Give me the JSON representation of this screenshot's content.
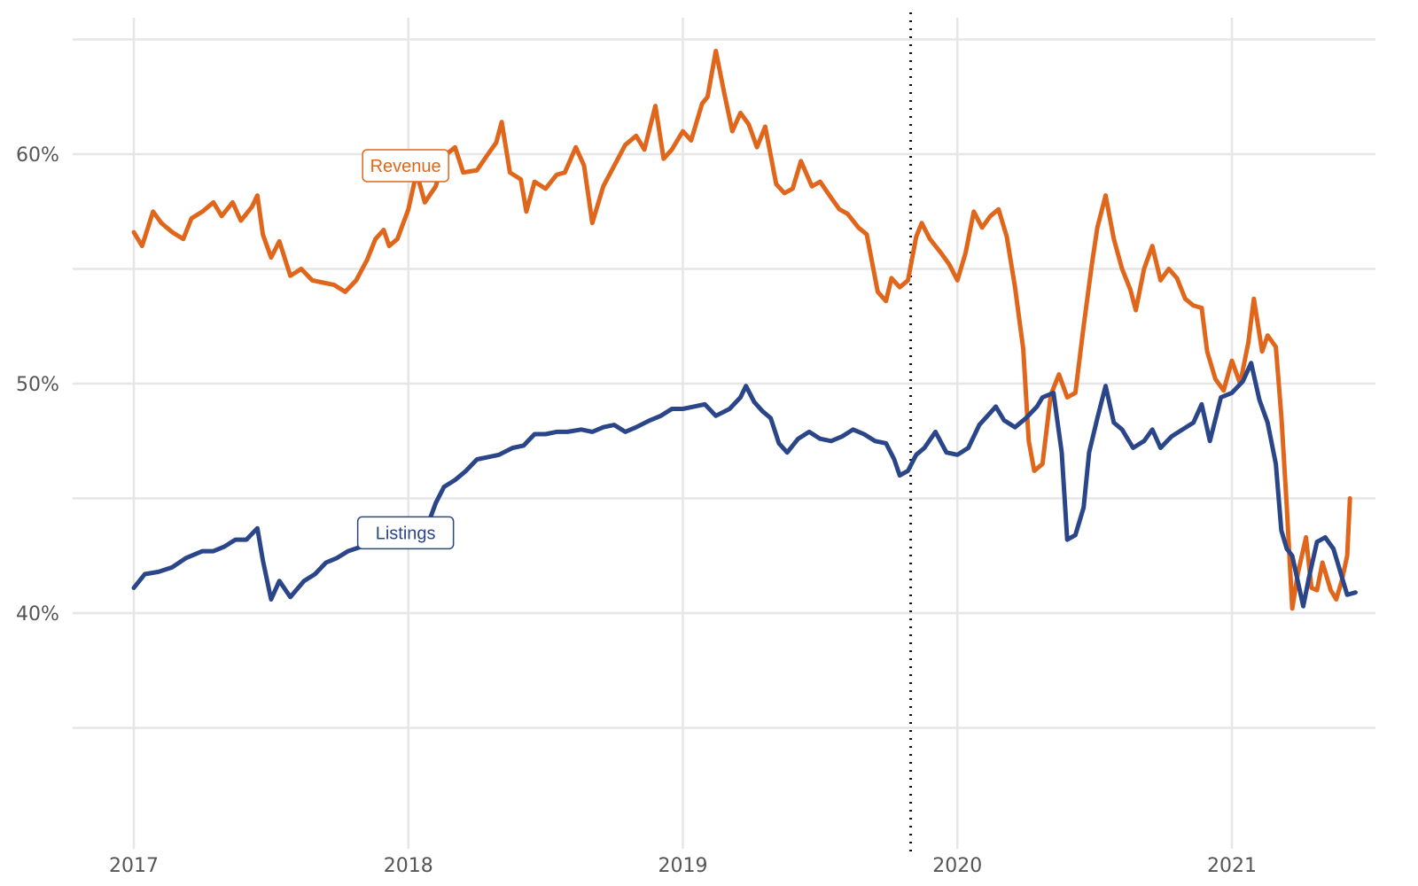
{
  "chart_data": {
    "type": "line",
    "title": "",
    "xlabel": "",
    "ylabel": "",
    "xlim": [
      2017.0,
      2021.63
    ],
    "ylim": [
      30,
      65
    ],
    "x_ticks": [
      2017,
      2018,
      2019,
      2020,
      2021
    ],
    "x_tick_labels": [
      "2017",
      "2018",
      "2019",
      "2020",
      "2021"
    ],
    "y_ticks": [
      40,
      50,
      60
    ],
    "y_tick_labels": [
      "40%",
      "50%",
      "60%"
    ],
    "y_gridlines": [
      35,
      40,
      45,
      50,
      55,
      60,
      65
    ],
    "grid": true,
    "legend": "inline-labels",
    "vertical_marker": {
      "x": 2019.83,
      "style": "dotted"
    },
    "series": [
      {
        "name": "Revenue",
        "color": "#e0661b",
        "label_at": {
          "x": 2017.99,
          "y": 59.5
        },
        "points": [
          [
            2017.0,
            56.6
          ],
          [
            2017.03,
            56.0
          ],
          [
            2017.07,
            57.5
          ],
          [
            2017.1,
            57.0
          ],
          [
            2017.14,
            56.6
          ],
          [
            2017.18,
            56.3
          ],
          [
            2017.21,
            57.2
          ],
          [
            2017.25,
            57.5
          ],
          [
            2017.29,
            57.9
          ],
          [
            2017.32,
            57.3
          ],
          [
            2017.36,
            57.9
          ],
          [
            2017.39,
            57.1
          ],
          [
            2017.43,
            57.7
          ],
          [
            2017.45,
            58.2
          ],
          [
            2017.47,
            56.5
          ],
          [
            2017.5,
            55.5
          ],
          [
            2017.53,
            56.2
          ],
          [
            2017.57,
            54.7
          ],
          [
            2017.61,
            55.0
          ],
          [
            2017.65,
            54.5
          ],
          [
            2017.69,
            54.4
          ],
          [
            2017.73,
            54.3
          ],
          [
            2017.77,
            54.0
          ],
          [
            2017.81,
            54.5
          ],
          [
            2017.85,
            55.4
          ],
          [
            2017.88,
            56.3
          ],
          [
            2017.91,
            56.7
          ],
          [
            2017.93,
            56.0
          ],
          [
            2017.96,
            56.3
          ],
          [
            2018.0,
            57.6
          ],
          [
            2018.03,
            59.2
          ],
          [
            2018.06,
            57.9
          ],
          [
            2018.1,
            58.6
          ],
          [
            2018.13,
            59.9
          ],
          [
            2018.17,
            60.3
          ],
          [
            2018.2,
            59.2
          ],
          [
            2018.25,
            59.3
          ],
          [
            2018.29,
            60.0
          ],
          [
            2018.32,
            60.5
          ],
          [
            2018.34,
            61.4
          ],
          [
            2018.37,
            59.2
          ],
          [
            2018.41,
            58.9
          ],
          [
            2018.43,
            57.5
          ],
          [
            2018.46,
            58.8
          ],
          [
            2018.5,
            58.5
          ],
          [
            2018.54,
            59.1
          ],
          [
            2018.57,
            59.2
          ],
          [
            2018.61,
            60.3
          ],
          [
            2018.64,
            59.5
          ],
          [
            2018.67,
            57.0
          ],
          [
            2018.71,
            58.6
          ],
          [
            2018.75,
            59.5
          ],
          [
            2018.79,
            60.4
          ],
          [
            2018.83,
            60.8
          ],
          [
            2018.86,
            60.2
          ],
          [
            2018.9,
            62.1
          ],
          [
            2018.93,
            59.8
          ],
          [
            2018.96,
            60.2
          ],
          [
            2019.0,
            61.0
          ],
          [
            2019.03,
            60.6
          ],
          [
            2019.07,
            62.2
          ],
          [
            2019.09,
            62.5
          ],
          [
            2019.12,
            64.5
          ],
          [
            2019.15,
            62.7
          ],
          [
            2019.18,
            61.0
          ],
          [
            2019.21,
            61.8
          ],
          [
            2019.24,
            61.3
          ],
          [
            2019.27,
            60.3
          ],
          [
            2019.3,
            61.2
          ],
          [
            2019.34,
            58.7
          ],
          [
            2019.37,
            58.3
          ],
          [
            2019.4,
            58.5
          ],
          [
            2019.43,
            59.7
          ],
          [
            2019.47,
            58.6
          ],
          [
            2019.5,
            58.8
          ],
          [
            2019.54,
            58.1
          ],
          [
            2019.57,
            57.6
          ],
          [
            2019.6,
            57.4
          ],
          [
            2019.64,
            56.8
          ],
          [
            2019.67,
            56.5
          ],
          [
            2019.71,
            54.0
          ],
          [
            2019.74,
            53.6
          ],
          [
            2019.76,
            54.6
          ],
          [
            2019.79,
            54.2
          ],
          [
            2019.82,
            54.5
          ],
          [
            2019.85,
            56.4
          ],
          [
            2019.87,
            57.0
          ],
          [
            2019.9,
            56.3
          ],
          [
            2019.94,
            55.7
          ],
          [
            2019.97,
            55.2
          ],
          [
            2020.0,
            54.5
          ],
          [
            2020.03,
            55.7
          ],
          [
            2020.06,
            57.5
          ],
          [
            2020.09,
            56.8
          ],
          [
            2020.12,
            57.3
          ],
          [
            2020.15,
            57.6
          ],
          [
            2020.18,
            56.4
          ],
          [
            2020.21,
            54.2
          ],
          [
            2020.24,
            51.5
          ],
          [
            2020.26,
            47.5
          ],
          [
            2020.28,
            46.2
          ],
          [
            2020.31,
            46.5
          ],
          [
            2020.34,
            49.5
          ],
          [
            2020.37,
            50.4
          ],
          [
            2020.4,
            49.4
          ],
          [
            2020.43,
            49.6
          ],
          [
            2020.46,
            52.5
          ],
          [
            2020.49,
            55.2
          ],
          [
            2020.51,
            56.8
          ],
          [
            2020.54,
            58.2
          ],
          [
            2020.57,
            56.3
          ],
          [
            2020.6,
            55.0
          ],
          [
            2020.63,
            54.1
          ],
          [
            2020.65,
            53.2
          ],
          [
            2020.68,
            55.0
          ],
          [
            2020.71,
            56.0
          ],
          [
            2020.74,
            54.5
          ],
          [
            2020.77,
            55.0
          ],
          [
            2020.8,
            54.6
          ],
          [
            2020.83,
            53.7
          ],
          [
            2020.86,
            53.4
          ],
          [
            2020.89,
            53.3
          ],
          [
            2020.91,
            51.4
          ],
          [
            2020.94,
            50.2
          ],
          [
            2020.97,
            49.7
          ],
          [
            2021.0,
            51.0
          ],
          [
            2021.03,
            50.0
          ],
          [
            2021.06,
            51.8
          ],
          [
            2021.08,
            53.7
          ],
          [
            2021.11,
            51.4
          ],
          [
            2021.13,
            52.1
          ],
          [
            2021.16,
            51.6
          ],
          [
            2021.18,
            48.6
          ],
          [
            2021.2,
            44.6
          ],
          [
            2021.22,
            40.2
          ],
          [
            2021.24,
            41.7
          ],
          [
            2021.27,
            43.3
          ],
          [
            2021.29,
            41.1
          ],
          [
            2021.31,
            41.0
          ],
          [
            2021.33,
            42.2
          ],
          [
            2021.36,
            41.0
          ],
          [
            2021.38,
            40.6
          ],
          [
            2021.4,
            41.4
          ],
          [
            2021.42,
            42.5
          ],
          [
            2021.43,
            45.0
          ]
        ]
      },
      {
        "name": "Listings",
        "color": "#2b4589",
        "label_at": {
          "x": 2017.99,
          "y": 43.5
        },
        "points": [
          [
            2017.0,
            41.1
          ],
          [
            2017.04,
            41.7
          ],
          [
            2017.09,
            41.8
          ],
          [
            2017.14,
            42.0
          ],
          [
            2017.19,
            42.4
          ],
          [
            2017.25,
            42.7
          ],
          [
            2017.29,
            42.7
          ],
          [
            2017.33,
            42.9
          ],
          [
            2017.37,
            43.2
          ],
          [
            2017.41,
            43.2
          ],
          [
            2017.45,
            43.7
          ],
          [
            2017.47,
            42.3
          ],
          [
            2017.5,
            40.6
          ],
          [
            2017.53,
            41.4
          ],
          [
            2017.57,
            40.7
          ],
          [
            2017.62,
            41.4
          ],
          [
            2017.66,
            41.7
          ],
          [
            2017.7,
            42.2
          ],
          [
            2017.74,
            42.4
          ],
          [
            2017.78,
            42.7
          ],
          [
            2017.83,
            42.9
          ],
          [
            2017.87,
            43.1
          ],
          [
            2017.92,
            43.4
          ],
          [
            2017.96,
            43.4
          ],
          [
            2018.0,
            43.6
          ],
          [
            2018.06,
            43.5
          ],
          [
            2018.1,
            44.8
          ],
          [
            2018.13,
            45.5
          ],
          [
            2018.17,
            45.8
          ],
          [
            2018.21,
            46.2
          ],
          [
            2018.25,
            46.7
          ],
          [
            2018.29,
            46.8
          ],
          [
            2018.33,
            46.9
          ],
          [
            2018.38,
            47.2
          ],
          [
            2018.42,
            47.3
          ],
          [
            2018.46,
            47.8
          ],
          [
            2018.5,
            47.8
          ],
          [
            2018.54,
            47.9
          ],
          [
            2018.58,
            47.9
          ],
          [
            2018.63,
            48.0
          ],
          [
            2018.67,
            47.9
          ],
          [
            2018.71,
            48.1
          ],
          [
            2018.75,
            48.2
          ],
          [
            2018.79,
            47.9
          ],
          [
            2018.83,
            48.1
          ],
          [
            2018.88,
            48.4
          ],
          [
            2018.92,
            48.6
          ],
          [
            2018.96,
            48.9
          ],
          [
            2019.0,
            48.9
          ],
          [
            2019.04,
            49.0
          ],
          [
            2019.08,
            49.1
          ],
          [
            2019.12,
            48.6
          ],
          [
            2019.17,
            48.9
          ],
          [
            2019.21,
            49.4
          ],
          [
            2019.23,
            49.9
          ],
          [
            2019.26,
            49.2
          ],
          [
            2019.29,
            48.8
          ],
          [
            2019.32,
            48.5
          ],
          [
            2019.35,
            47.4
          ],
          [
            2019.38,
            47.0
          ],
          [
            2019.42,
            47.6
          ],
          [
            2019.46,
            47.9
          ],
          [
            2019.5,
            47.6
          ],
          [
            2019.54,
            47.5
          ],
          [
            2019.58,
            47.7
          ],
          [
            2019.62,
            48.0
          ],
          [
            2019.66,
            47.8
          ],
          [
            2019.7,
            47.5
          ],
          [
            2019.74,
            47.4
          ],
          [
            2019.77,
            46.7
          ],
          [
            2019.79,
            46.0
          ],
          [
            2019.82,
            46.2
          ],
          [
            2019.85,
            46.9
          ],
          [
            2019.88,
            47.2
          ],
          [
            2019.92,
            47.9
          ],
          [
            2019.96,
            47.0
          ],
          [
            2020.0,
            46.9
          ],
          [
            2020.04,
            47.2
          ],
          [
            2020.08,
            48.2
          ],
          [
            2020.11,
            48.6
          ],
          [
            2020.14,
            49.0
          ],
          [
            2020.17,
            48.4
          ],
          [
            2020.21,
            48.1
          ],
          [
            2020.25,
            48.5
          ],
          [
            2020.29,
            49.0
          ],
          [
            2020.31,
            49.4
          ],
          [
            2020.35,
            49.6
          ],
          [
            2020.38,
            47.0
          ],
          [
            2020.4,
            43.2
          ],
          [
            2020.43,
            43.4
          ],
          [
            2020.46,
            44.6
          ],
          [
            2020.48,
            47.0
          ],
          [
            2020.51,
            48.5
          ],
          [
            2020.54,
            49.9
          ],
          [
            2020.57,
            48.3
          ],
          [
            2020.6,
            48.0
          ],
          [
            2020.64,
            47.2
          ],
          [
            2020.68,
            47.5
          ],
          [
            2020.71,
            48.0
          ],
          [
            2020.74,
            47.2
          ],
          [
            2020.78,
            47.7
          ],
          [
            2020.82,
            48.0
          ],
          [
            2020.86,
            48.3
          ],
          [
            2020.89,
            49.1
          ],
          [
            2020.92,
            47.5
          ],
          [
            2020.96,
            49.4
          ],
          [
            2021.0,
            49.6
          ],
          [
            2021.04,
            50.1
          ],
          [
            2021.07,
            50.9
          ],
          [
            2021.1,
            49.3
          ],
          [
            2021.13,
            48.3
          ],
          [
            2021.16,
            46.5
          ],
          [
            2021.18,
            43.6
          ],
          [
            2021.2,
            42.8
          ],
          [
            2021.22,
            42.5
          ],
          [
            2021.24,
            41.4
          ],
          [
            2021.26,
            40.3
          ],
          [
            2021.28,
            41.5
          ],
          [
            2021.31,
            43.1
          ],
          [
            2021.34,
            43.3
          ],
          [
            2021.37,
            42.8
          ],
          [
            2021.39,
            42.0
          ],
          [
            2021.42,
            40.8
          ],
          [
            2021.45,
            40.9
          ]
        ]
      }
    ]
  }
}
